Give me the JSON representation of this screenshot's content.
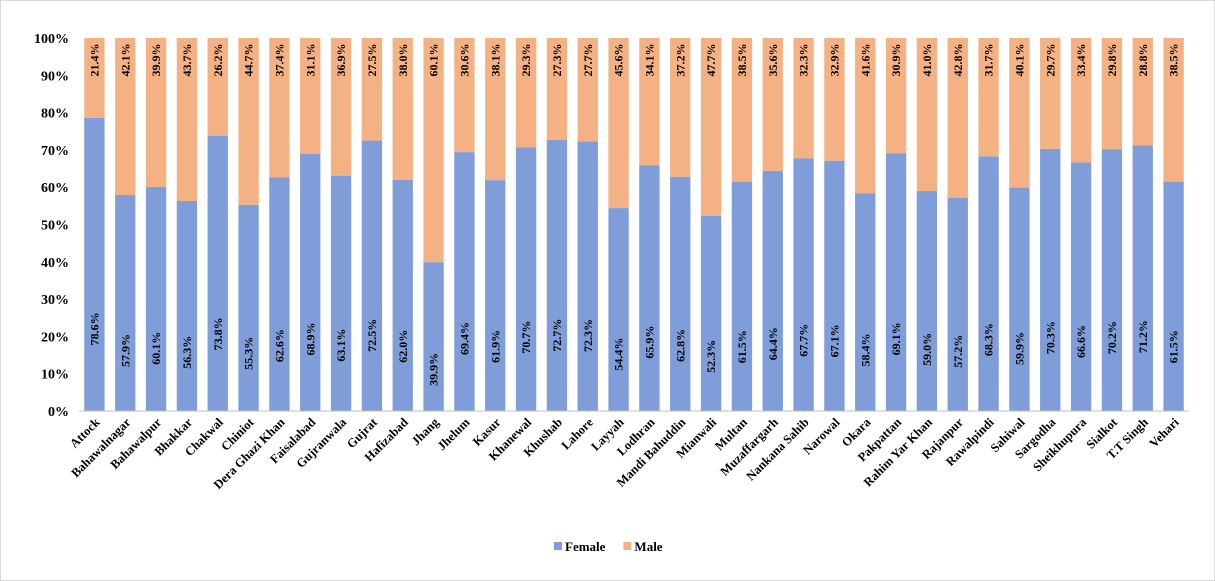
{
  "chart_data": {
    "type": "bar",
    "stacked": true,
    "ylim": [
      0,
      100
    ],
    "yticks": [
      "0%",
      "10%",
      "20%",
      "30%",
      "40%",
      "50%",
      "60%",
      "70%",
      "80%",
      "90%",
      "100%"
    ],
    "grid": false,
    "legend_position": "bottom",
    "categories": [
      "Attock",
      "Bahawalnagar",
      "Bahawalpur",
      "Bhakkar",
      "Chakwal",
      "Chiniot",
      "Dera Ghazi Khan",
      "Faisalabad",
      "Gujranwala",
      "Gujrat",
      "Hafizabad",
      "Jhang",
      "Jhelum",
      "Kasur",
      "Khanewal",
      "Khushab",
      "Lahore",
      "Layyah",
      "Lodhran",
      "Mandi Bahuddin",
      "Mianwali",
      "Multan",
      "Muzaffargarh",
      "Nankana Sahib",
      "Narowal",
      "Okara",
      "Pakpattan",
      "Rahim Yar Khan",
      "Rajanpur",
      "Rawalpindi",
      "Sahiwal",
      "Sargodha",
      "Sheikhupura",
      "Sialkot",
      "T.T Singh",
      "Vehari"
    ],
    "series": [
      {
        "name": "Female",
        "color": "#7F9DD9",
        "values": [
          78.6,
          57.9,
          60.1,
          56.3,
          73.8,
          55.3,
          62.6,
          68.9,
          63.1,
          72.5,
          62.0,
          39.9,
          69.4,
          61.9,
          70.7,
          72.7,
          72.3,
          54.4,
          65.9,
          62.8,
          52.3,
          61.5,
          64.4,
          67.7,
          67.1,
          58.4,
          69.1,
          59.0,
          57.2,
          68.3,
          59.9,
          70.3,
          66.6,
          70.2,
          71.2,
          61.5
        ],
        "labels": [
          "78.6%",
          "57.9%",
          "60.1%",
          "56.3%",
          "73.8%",
          "55.3%",
          "62.6%",
          "68.9%",
          "63.1%",
          "72.5%",
          "62.0%",
          "39.9%",
          "69.4%",
          "61.9%",
          "70.7%",
          "72.7%",
          "72.3%",
          "54.4%",
          "65.9%",
          "62.8%",
          "52.3%",
          "61.5%",
          "64.4%",
          "67.7%",
          "67.1%",
          "58.4%",
          "69.1%",
          "59.0%",
          "57.2%",
          "68.3%",
          "59.9%",
          "70.3%",
          "66.6%",
          "70.2%",
          "71.2%",
          "61.5%"
        ]
      },
      {
        "name": "Male",
        "color": "#F4B183",
        "values": [
          21.4,
          42.1,
          39.9,
          43.7,
          26.2,
          44.7,
          37.4,
          31.1,
          36.9,
          27.5,
          38.0,
          60.1,
          30.6,
          38.1,
          29.3,
          27.3,
          27.7,
          45.6,
          34.1,
          37.2,
          47.7,
          38.5,
          35.6,
          32.3,
          32.9,
          41.6,
          30.9,
          41.0,
          42.8,
          31.7,
          40.1,
          29.7,
          33.4,
          29.8,
          28.8,
          38.5
        ],
        "labels": [
          "21.4%",
          "42.1%",
          "39.9%",
          "43.7%",
          "26.2%",
          "44.7%",
          "37.4%",
          "31.1%",
          "36.9%",
          "27.5%",
          "38.0%",
          "60.1%",
          "30.6%",
          "38.1%",
          "29.3%",
          "27.3%",
          "27.7%",
          "45.6%",
          "34.1%",
          "37.2%",
          "47.7%",
          "38.5%",
          "35.6%",
          "32.3%",
          "32.9%",
          "41.6%",
          "30.9%",
          "41.0%",
          "42.8%",
          "31.7%",
          "40.1%",
          "29.7%",
          "33.4%",
          "29.8%",
          "28.8%",
          "38.5%"
        ]
      }
    ]
  }
}
